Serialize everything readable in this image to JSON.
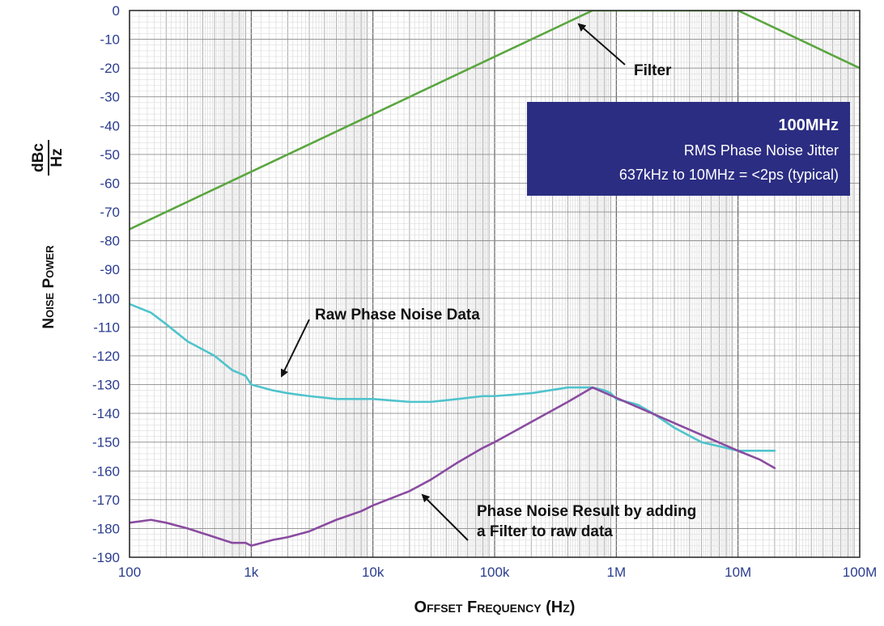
{
  "chart_data": {
    "type": "line",
    "x_scale": "log",
    "xlim": [
      100,
      100000000
    ],
    "ylim": [
      -190,
      0
    ],
    "grid": true,
    "xlabel": "Offset Frequency (Hz)",
    "ylabel": "Noise Power",
    "ylabel_unit_num": "dBc",
    "ylabel_unit_den": "Hz",
    "x_tick_labels": [
      {
        "value": 100,
        "label": "100"
      },
      {
        "value": 1000,
        "label": "1k"
      },
      {
        "value": 10000,
        "label": "10k"
      },
      {
        "value": 100000,
        "label": "100k"
      },
      {
        "value": 1000000,
        "label": "1M"
      },
      {
        "value": 10000000,
        "label": "10M"
      },
      {
        "value": 100000000,
        "label": "100M"
      }
    ],
    "y_ticks": [
      0,
      -10,
      -20,
      -30,
      -40,
      -50,
      -60,
      -70,
      -80,
      -90,
      -100,
      -110,
      -120,
      -130,
      -140,
      -150,
      -160,
      -170,
      -180,
      -190
    ],
    "series": [
      {
        "color": "#5aa63f",
        "x": [
          100,
          637000,
          10000000,
          100000000
        ],
        "y": [
          -76,
          0,
          0,
          -20
        ]
      },
      {
        "color": "#4fc3cc",
        "x": [
          100,
          150,
          200,
          300,
          500,
          700,
          900,
          1000,
          1500,
          2000,
          3000,
          5000,
          8000,
          10000,
          20000,
          30000,
          50000,
          80000,
          100000,
          200000,
          400000,
          637000,
          800000,
          900000,
          1000000,
          1500000,
          2000000,
          3000000,
          5000000,
          8000000,
          10000000,
          15000000,
          20000000
        ],
        "y": [
          -102,
          -105,
          -109,
          -115,
          -120,
          -125,
          -127,
          -130,
          -132,
          -133,
          -134,
          -135,
          -135,
          -135,
          -136,
          -136,
          -135,
          -134,
          -134,
          -133,
          -131,
          -131,
          -132,
          -133,
          -135,
          -137,
          -140,
          -145,
          -150,
          -152,
          -153,
          -153,
          -153
        ]
      },
      {
        "color": "#8a4ba0",
        "x": [
          100,
          150,
          200,
          300,
          500,
          700,
          900,
          1000,
          1500,
          2000,
          3000,
          5000,
          8000,
          10000,
          20000,
          30000,
          50000,
          80000,
          100000,
          200000,
          400000,
          637000,
          10000000,
          15000000,
          20000000
        ],
        "y": [
          -178,
          -177,
          -178,
          -180,
          -183,
          -185,
          -185,
          -186,
          -184,
          -183,
          -181,
          -177,
          -174,
          -172,
          -167,
          -163,
          -157,
          -152,
          -150,
          -143,
          -136,
          -131,
          -153,
          -156,
          -159
        ]
      }
    ],
    "annotations": [
      {
        "text": "Filter"
      },
      {
        "text": "Raw Phase Noise Data"
      },
      {
        "text": "Phase Noise Result by adding"
      },
      {
        "text": "a Filter to raw data"
      }
    ],
    "info_box": {
      "title": "100MHz",
      "line1": "RMS Phase Noise Jitter",
      "line2": "637kHz to 10MHz = <2ps (typical)",
      "color": "#2b2d82"
    }
  }
}
